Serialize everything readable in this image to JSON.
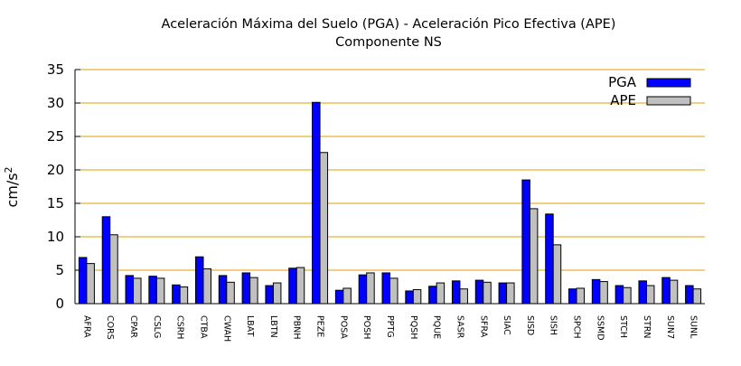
{
  "chart_data": {
    "type": "bar",
    "title": "Aceleración Máxima del Suelo (PGA) -  Aceleración Pico Efectiva (APE)",
    "subtitle": "Componente NS",
    "ylabel": "cm/s",
    "ylabel_superscript": "2",
    "xlabel": "",
    "ylim": [
      0,
      35
    ],
    "yticks": [
      0,
      5,
      10,
      15,
      20,
      25,
      30,
      35
    ],
    "grid": true,
    "legend_position": "top-right",
    "categories": [
      "AFRA",
      "CORS",
      "CPAR",
      "CSLG",
      "CSRH",
      "CTBA",
      "CWAH",
      "LBAT",
      "LBTN",
      "PBNH",
      "PEZE",
      "POSA",
      "POSH",
      "PPTG",
      "PQSH",
      "PQUE",
      "SASR",
      "SFRA",
      "SIAC",
      "SISD",
      "SISH",
      "SPCH",
      "SSMD",
      "STCH",
      "STRN",
      "SUN7",
      "SUNL"
    ],
    "series": [
      {
        "name": "PGA",
        "color": "#0000ff",
        "values": [
          6.9,
          13.0,
          4.2,
          4.1,
          2.8,
          7.0,
          4.2,
          4.6,
          2.7,
          5.3,
          30.1,
          2.0,
          4.3,
          4.6,
          1.9,
          2.6,
          3.4,
          3.5,
          3.1,
          18.5,
          13.4,
          2.2,
          3.6,
          2.7,
          3.4,
          3.9,
          2.7
        ]
      },
      {
        "name": "APE",
        "color": "#c0c0c0",
        "values": [
          6.0,
          10.3,
          3.8,
          3.8,
          2.5,
          5.2,
          3.2,
          3.9,
          3.1,
          5.4,
          22.6,
          2.3,
          4.6,
          3.8,
          2.1,
          3.1,
          2.2,
          3.2,
          3.1,
          14.2,
          8.8,
          2.3,
          3.3,
          2.4,
          2.7,
          3.5,
          2.2
        ]
      }
    ],
    "colors": {
      "grid": "#e0a000",
      "axis": "#000000",
      "bar_border": "#000000"
    }
  }
}
